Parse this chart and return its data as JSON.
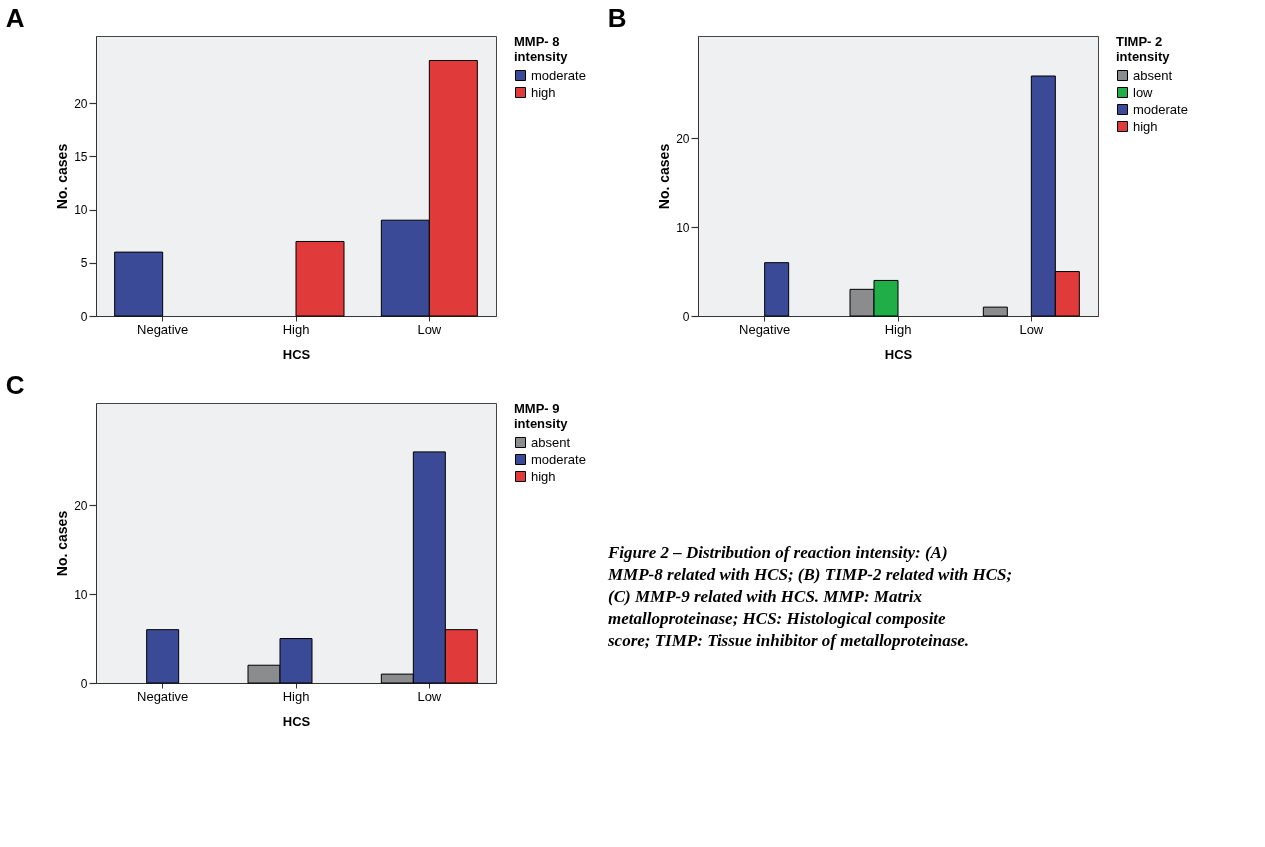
{
  "chart_data": [
    {
      "type": "bar",
      "title": "A",
      "xlabel": "HCS",
      "ylabel": "No. cases",
      "legend_title": "MMP- 8 intensity",
      "legend": "top right",
      "categories": [
        "Negative",
        "High",
        "Low"
      ],
      "ylim": [
        0,
        26.3
      ],
      "yticks": [
        0,
        5,
        10,
        15,
        20
      ],
      "series": [
        {
          "name": "moderate",
          "color": "#3a4a96",
          "values": [
            6,
            null,
            9
          ]
        },
        {
          "name": "high",
          "color": "#e03a3a",
          "values": [
            null,
            7,
            24
          ]
        }
      ]
    },
    {
      "type": "bar",
      "title": "B",
      "xlabel": "HCS",
      "ylabel": "No. cases",
      "legend_title": "TIMP- 2 intensity",
      "legend": "top right",
      "categories": [
        "Negative",
        "High",
        "Low"
      ],
      "ylim": [
        0,
        31.5
      ],
      "yticks": [
        0,
        10,
        20
      ],
      "series": [
        {
          "name": "absent",
          "color": "#8a8c8e",
          "values": [
            null,
            3,
            1
          ]
        },
        {
          "name": "low",
          "color": "#1fae48",
          "values": [
            null,
            4,
            null
          ]
        },
        {
          "name": "moderate",
          "color": "#3a4a96",
          "values": [
            6,
            null,
            27
          ]
        },
        {
          "name": "high",
          "color": "#e03a3a",
          "values": [
            null,
            null,
            5
          ]
        }
      ]
    },
    {
      "type": "bar",
      "title": "C",
      "xlabel": "HCS",
      "ylabel": "No. cases",
      "legend_title": "MMP- 9 intensity",
      "legend": "top right",
      "categories": [
        "Negative",
        "High",
        "Low"
      ],
      "ylim": [
        0,
        31.5
      ],
      "yticks": [
        0,
        10,
        20
      ],
      "annotations": [
        "Figure 2 – Distribution of reaction intensity: (A) MMP-8 related with HCS; (B) TIMP-2 related with HCS; (C) MMP-9 related with HCS. MMP: Matrix metalloproteinase; HCS: Histological composite score; TIMP: Tissue inhibitor of metalloproteinase."
      ],
      "series": [
        {
          "name": "absent",
          "color": "#8a8c8e",
          "values": [
            null,
            2,
            1
          ]
        },
        {
          "name": "moderate",
          "color": "#3a4a96",
          "values": [
            6,
            5,
            26
          ]
        },
        {
          "name": "high",
          "color": "#e03a3a",
          "values": [
            null,
            null,
            6
          ]
        }
      ]
    }
  ]
}
